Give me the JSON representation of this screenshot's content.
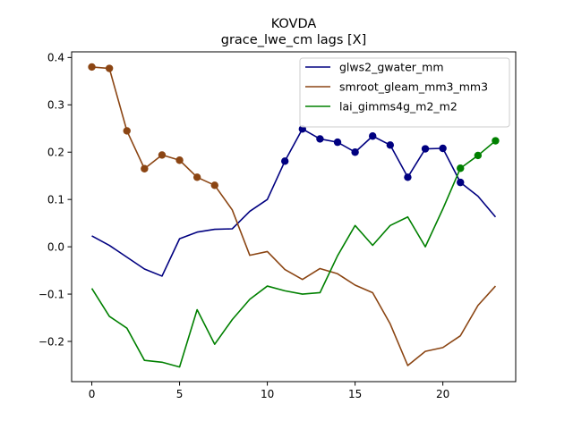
{
  "chart_data": {
    "type": "line",
    "title": "KOVDA",
    "subtitle": "grace_lwe_cm lags [X]",
    "xlabel": "",
    "ylabel": "",
    "xlim": [
      -1.15,
      24.15
    ],
    "ylim": [
      -0.285,
      0.412
    ],
    "grid": false,
    "legend_placement": "top-right",
    "x_ticks": [
      0,
      5,
      10,
      15,
      20
    ],
    "y_ticks": [
      -0.2,
      -0.1,
      0.0,
      0.1,
      0.2,
      0.3,
      0.4
    ],
    "x_tick_labels": [
      "0",
      "5",
      "10",
      "15",
      "20"
    ],
    "y_tick_labels": [
      "−0.2",
      "−0.1",
      "0.0",
      "0.1",
      "0.2",
      "0.3",
      "0.4"
    ],
    "x": [
      0,
      1,
      2,
      3,
      4,
      5,
      6,
      7,
      8,
      9,
      10,
      11,
      12,
      13,
      14,
      15,
      16,
      17,
      18,
      19,
      20,
      21,
      22,
      23
    ],
    "series": [
      {
        "name": "glws2_gwater_mm",
        "color": "#000080",
        "values": [
          0.023,
          0.003,
          -0.022,
          -0.047,
          -0.062,
          0.017,
          0.031,
          0.037,
          0.038,
          0.075,
          0.1,
          0.181,
          0.249,
          0.228,
          0.221,
          0.2,
          0.234,
          0.215,
          0.147,
          0.207,
          0.208,
          0.136,
          0.107,
          0.063
        ],
        "markers": [
          11,
          12,
          13,
          14,
          15,
          16,
          17,
          18,
          19,
          20,
          21
        ]
      },
      {
        "name": "smroot_gleam_mm3_mm3",
        "color": "#8B4513",
        "values": [
          0.38,
          0.377,
          0.245,
          0.165,
          0.194,
          0.183,
          0.147,
          0.13,
          0.078,
          -0.018,
          -0.01,
          -0.048,
          -0.069,
          -0.046,
          -0.057,
          -0.081,
          -0.097,
          -0.163,
          -0.251,
          -0.221,
          -0.213,
          -0.188,
          -0.124,
          -0.083
        ],
        "markers": [
          0,
          1,
          2,
          3,
          4,
          5,
          6,
          7
        ]
      },
      {
        "name": "lai_gimms4g_m2_m2",
        "color": "#008000",
        "values": [
          -0.088,
          -0.147,
          -0.172,
          -0.24,
          -0.244,
          -0.254,
          -0.133,
          -0.206,
          -0.154,
          -0.111,
          -0.083,
          -0.093,
          -0.1,
          -0.097,
          -0.019,
          0.045,
          0.003,
          0.045,
          0.063,
          0.0,
          0.08,
          0.166,
          0.193,
          0.224
        ],
        "markers": [
          21,
          22,
          23
        ]
      }
    ]
  }
}
